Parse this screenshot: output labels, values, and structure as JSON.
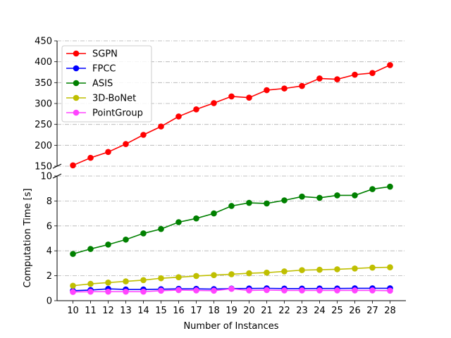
{
  "chart_data": {
    "type": "line",
    "title": "",
    "xlabel": "Number of Instances",
    "ylabel": "Computation Time [s]",
    "x": [
      10,
      11,
      12,
      13,
      14,
      15,
      16,
      17,
      18,
      19,
      20,
      21,
      22,
      23,
      24,
      25,
      26,
      27,
      28
    ],
    "broken_y_axis": true,
    "upper_ylim": [
      150,
      450
    ],
    "upper_yticks": [
      150,
      200,
      250,
      300,
      350,
      400,
      450
    ],
    "lower_ylim": [
      0,
      10
    ],
    "lower_yticks": [
      0,
      2,
      4,
      6,
      8,
      10
    ],
    "grid": "horizontal dash-dot",
    "legend_position": "top-left",
    "series": [
      {
        "name": "SGPN",
        "color": "#ff0000",
        "values": [
          152,
          170,
          184,
          203,
          225,
          245,
          269,
          286,
          301,
          317,
          314,
          332,
          336,
          342,
          360,
          358,
          369,
          373,
          392
        ]
      },
      {
        "name": "FPCC",
        "color": "#0000ff",
        "values": [
          0.8,
          0.85,
          0.95,
          0.9,
          0.9,
          0.92,
          0.95,
          0.95,
          0.93,
          0.97,
          0.98,
          0.99,
          0.97,
          0.97,
          0.98,
          0.98,
          0.99,
          0.99,
          0.99
        ]
      },
      {
        "name": "ASIS",
        "color": "#008000",
        "values": [
          3.75,
          4.15,
          4.5,
          4.9,
          5.4,
          5.75,
          6.3,
          6.6,
          7.0,
          7.6,
          7.85,
          7.8,
          8.05,
          8.35,
          8.25,
          8.45,
          8.45,
          8.95,
          9.15
        ]
      },
      {
        "name": "3D-BoNet",
        "color": "#bfbf00",
        "values": [
          1.2,
          1.35,
          1.45,
          1.55,
          1.65,
          1.8,
          1.88,
          1.98,
          2.05,
          2.12,
          2.2,
          2.25,
          2.35,
          2.45,
          2.48,
          2.52,
          2.58,
          2.65,
          2.68
        ]
      },
      {
        "name": "PointGroup",
        "color": "#ff44ff",
        "values": [
          0.7,
          0.72,
          0.72,
          0.72,
          0.72,
          0.8,
          0.85,
          0.82,
          0.8,
          0.95,
          0.82,
          0.85,
          0.82,
          0.82,
          0.82,
          0.82,
          0.82,
          0.82,
          0.8
        ]
      }
    ]
  }
}
